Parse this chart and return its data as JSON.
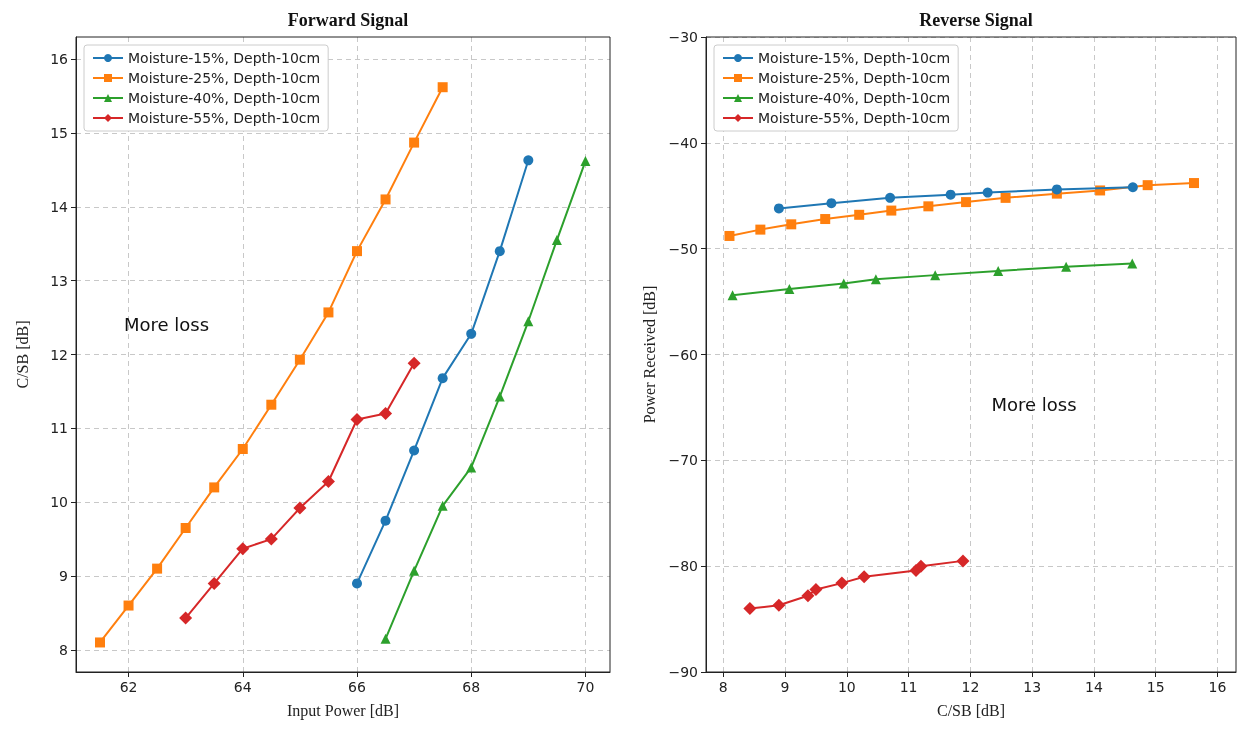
{
  "chart_data": [
    {
      "type": "line",
      "title": "Forward Signal",
      "xlabel": "Input Power [dB]",
      "ylabel": "C/SB [dB]",
      "xlim": [
        61.08,
        70.43
      ],
      "xticks": [
        62,
        64,
        66,
        68,
        70
      ],
      "ylim": [
        7.7,
        16.3
      ],
      "yticks": [
        8,
        9,
        10,
        11,
        12,
        13,
        14,
        15,
        16
      ],
      "grid": true,
      "legend": "top left",
      "annotations": [
        "More loss"
      ],
      "series": [
        {
          "name": "Moisture-15%, Depth-10cm",
          "color": "#1f77b4",
          "marker": "circle",
          "x": [
            66,
            66.5,
            67,
            67.5,
            68,
            68.5,
            69
          ],
          "values": [
            8.9,
            9.75,
            10.7,
            11.68,
            12.28,
            13.4,
            14.63
          ]
        },
        {
          "name": "Moisture-25%, Depth-10cm",
          "color": "#ff7f0e",
          "marker": "square",
          "x": [
            61.5,
            62,
            62.5,
            63,
            63.5,
            64,
            64.5,
            65,
            65.5,
            66,
            66.5,
            67,
            67.5
          ],
          "values": [
            8.1,
            8.6,
            9.1,
            9.65,
            10.2,
            10.72,
            11.32,
            11.93,
            12.57,
            13.4,
            14.1,
            14.87,
            15.62
          ]
        },
        {
          "name": "Moisture-40%, Depth-10cm",
          "color": "#2ca02c",
          "marker": "triangle",
          "x": [
            66.5,
            67,
            67.5,
            68,
            68.5,
            69,
            69.5,
            70
          ],
          "values": [
            8.15,
            9.07,
            9.95,
            10.47,
            11.43,
            12.45,
            13.55,
            14.62
          ]
        },
        {
          "name": "Moisture-55%, Depth-10cm",
          "color": "#d62728",
          "marker": "diamond",
          "x": [
            63,
            63.5,
            64,
            64.5,
            65,
            65.5,
            66,
            66.5,
            67
          ],
          "values": [
            8.43,
            8.9,
            9.37,
            9.5,
            9.92,
            10.28,
            11.12,
            11.2,
            11.88
          ]
        }
      ]
    },
    {
      "type": "line",
      "title": "Reverse Signal",
      "xlabel": "C/SB [dB]",
      "ylabel": "Power Received [dB]",
      "xlim": [
        7.72,
        16.3
      ],
      "xticks": [
        8,
        9,
        10,
        11,
        12,
        13,
        14,
        15,
        16
      ],
      "ylim": [
        -90,
        -30
      ],
      "yticks": [
        -90,
        -80,
        -70,
        -60,
        -50,
        -40,
        -30
      ],
      "grid": true,
      "legend": "top left",
      "annotations": [
        "More loss"
      ],
      "series": [
        {
          "name": "Moisture-15%, Depth-10cm",
          "color": "#1f77b4",
          "marker": "circle",
          "x": [
            8.9,
            9.75,
            10.7,
            11.68,
            12.28,
            13.4,
            14.63
          ],
          "values": [
            -46.2,
            -45.7,
            -45.2,
            -44.9,
            -44.7,
            -44.4,
            -44.2
          ]
        },
        {
          "name": "Moisture-25%, Depth-10cm",
          "color": "#ff7f0e",
          "marker": "square",
          "x": [
            8.1,
            8.6,
            9.1,
            9.65,
            10.2,
            10.72,
            11.32,
            11.93,
            12.57,
            13.4,
            14.1,
            14.87,
            15.62
          ],
          "values": [
            -48.8,
            -48.2,
            -47.7,
            -47.2,
            -46.8,
            -46.4,
            -46.0,
            -45.6,
            -45.2,
            -44.8,
            -44.5,
            -44.0,
            -43.8
          ]
        },
        {
          "name": "Moisture-40%, Depth-10cm",
          "color": "#2ca02c",
          "marker": "triangle",
          "x": [
            8.15,
            9.07,
            9.95,
            10.47,
            11.43,
            12.45,
            13.55,
            14.62
          ],
          "values": [
            -54.4,
            -53.8,
            -53.3,
            -52.9,
            -52.5,
            -52.1,
            -51.7,
            -51.4
          ]
        },
        {
          "name": "Moisture-55%, Depth-10cm",
          "color": "#d62728",
          "marker": "diamond",
          "x": [
            8.43,
            8.9,
            9.37,
            9.5,
            9.92,
            10.28,
            11.12,
            11.2,
            11.88
          ],
          "values": [
            -84.0,
            -83.7,
            -82.8,
            -82.2,
            -81.6,
            -81.0,
            -80.4,
            -80.0,
            -79.5
          ]
        }
      ]
    }
  ]
}
